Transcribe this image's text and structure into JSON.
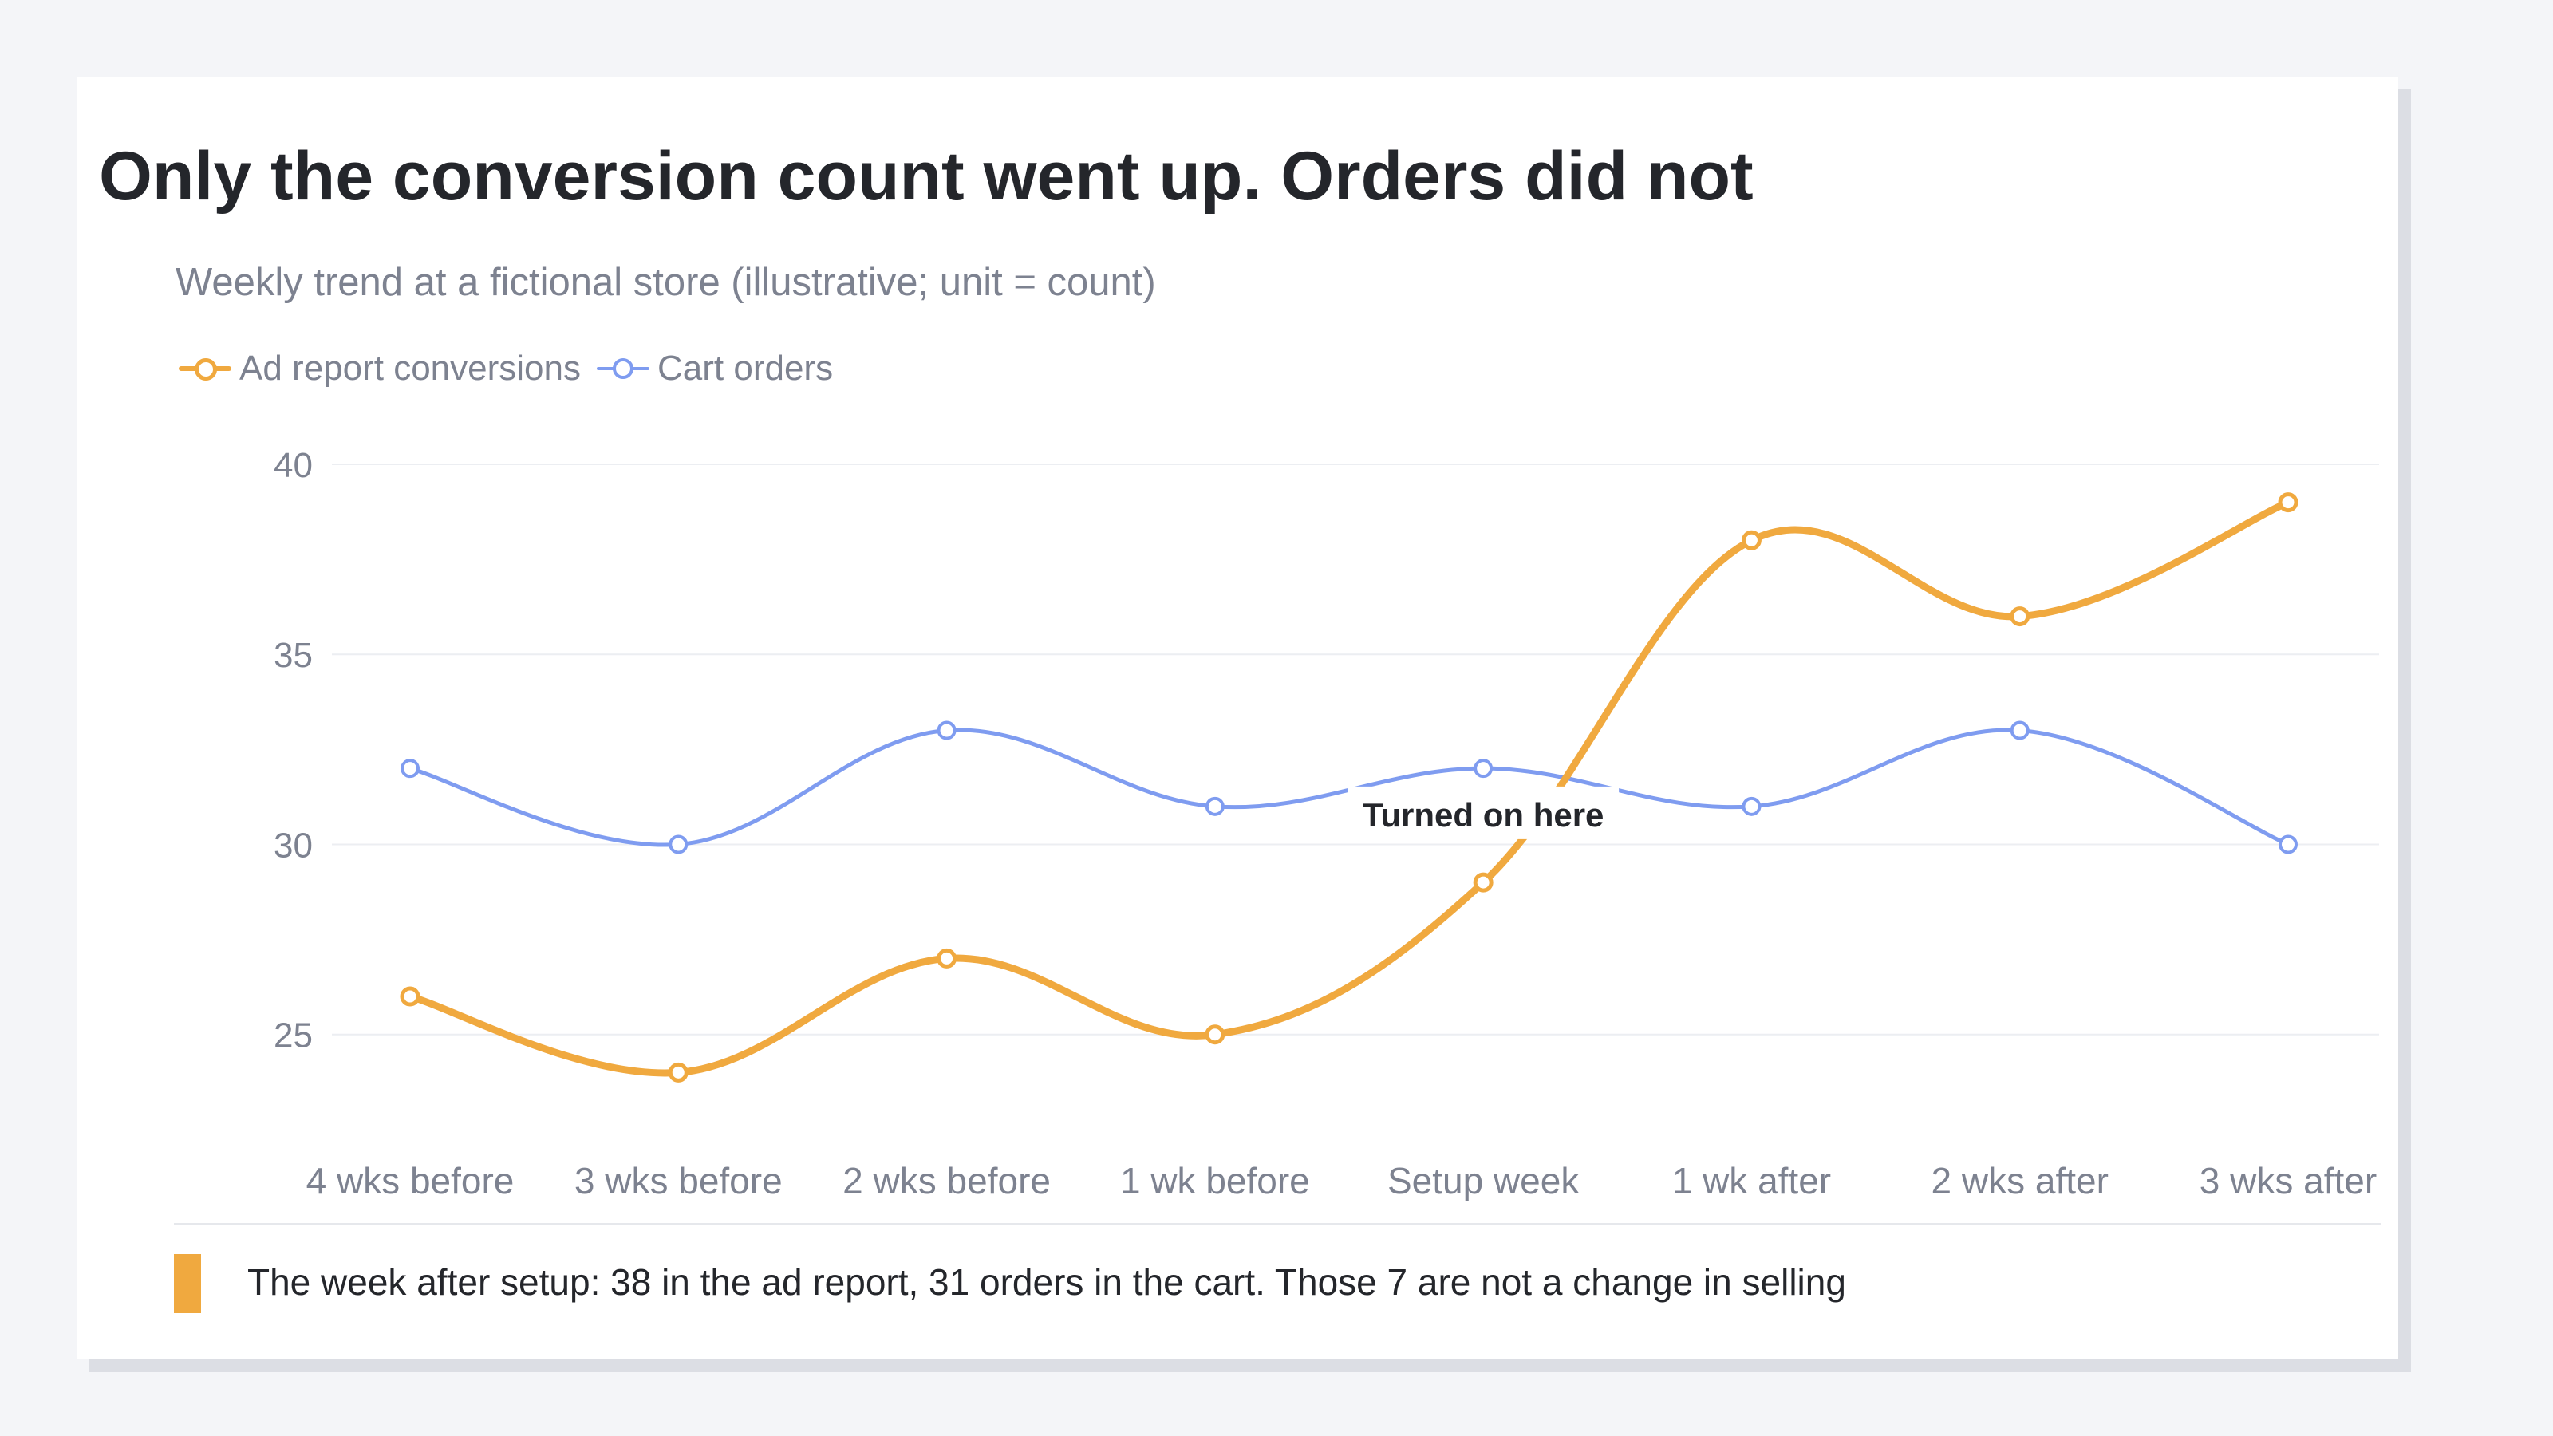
{
  "title": "Only the conversion count went up. Orders did not",
  "subtitle": "Weekly trend at a fictional store (illustrative; unit = count)",
  "note": "The week after setup: 38 in the ad report, 31 orders in the cart. Those 7 are not a change in selling",
  "colors": {
    "conversions": "#f0a93f",
    "orders": "#7f9cf0",
    "note_accent": "#f0a93f"
  },
  "chart_data": {
    "type": "line",
    "title": "Only the conversion count went up. Orders did not",
    "subtitle": "Weekly trend at a fictional store (illustrative; unit = count)",
    "categories": [
      "4 wks before",
      "3 wks before",
      "2 wks before",
      "1 wk before",
      "Setup week",
      "1 wk after",
      "2 wks after",
      "3 wks after"
    ],
    "series": [
      {
        "name": "Ad report conversions",
        "values": [
          26,
          24,
          27,
          25,
          29,
          38,
          36,
          39
        ]
      },
      {
        "name": "Cart orders",
        "values": [
          32,
          30,
          33,
          31,
          32,
          31,
          33,
          30
        ]
      }
    ],
    "yticks": [
      25,
      30,
      35,
      40
    ],
    "ylim": [
      23,
      40
    ],
    "grid": true,
    "legend": "top-left",
    "annotation": {
      "text": "Turned on here",
      "category": "Setup week",
      "y": 30.6
    }
  }
}
